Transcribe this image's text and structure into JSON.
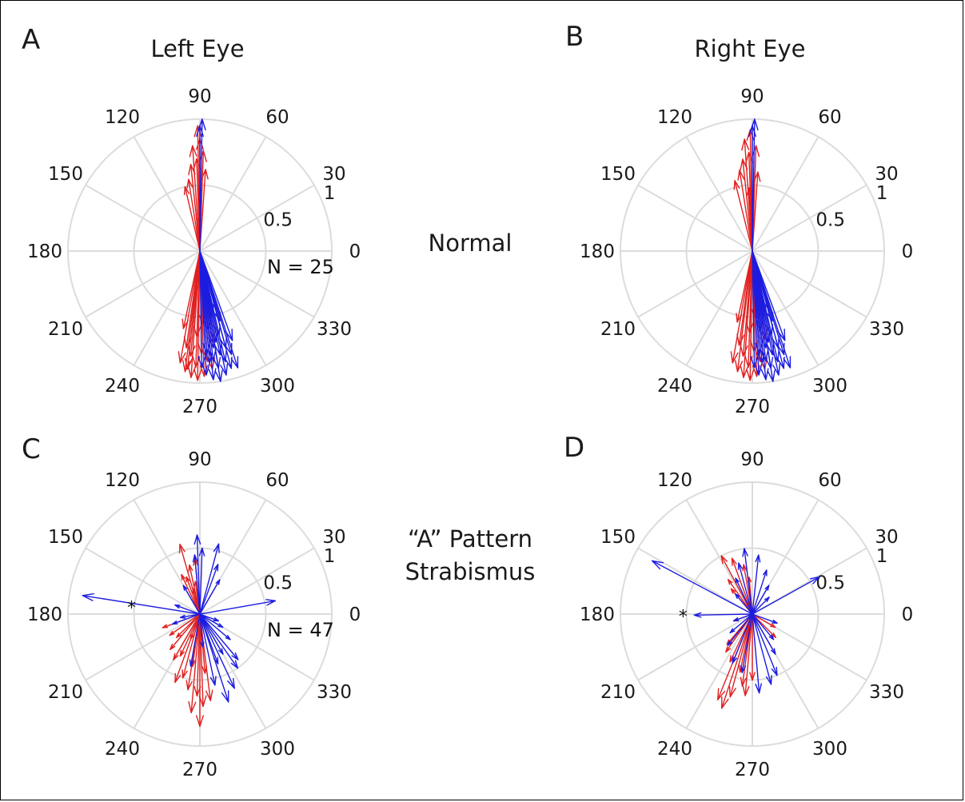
{
  "figure": {
    "column_titles": [
      "Left Eye",
      "Right Eye"
    ],
    "row_labels": [
      [
        "Normal"
      ],
      [
        "“A” Pattern",
        "Strabismus"
      ]
    ]
  },
  "chart_data": [
    {
      "type": "compass",
      "panel": "A",
      "angle_ticks": [
        "0",
        "30",
        "60",
        "90",
        "120",
        "150",
        "180",
        "210",
        "240",
        "270",
        "300",
        "330"
      ],
      "radius_ticks": [
        "0.5",
        "1"
      ],
      "rlim": [
        0,
        1
      ],
      "annotation": "N = 25",
      "series": [
        {
          "color": "#e02020",
          "vectors": [
            [
              0.95,
              91
            ],
            [
              0.8,
              94
            ],
            [
              0.76,
              88
            ],
            [
              0.7,
              92
            ],
            [
              0.66,
              96
            ],
            [
              0.55,
              99
            ],
            [
              0.5,
              103
            ],
            [
              0.85,
              90
            ],
            [
              0.62,
              86
            ],
            [
              0.98,
              269
            ],
            [
              0.96,
              266
            ],
            [
              0.95,
              272
            ],
            [
              0.92,
              263
            ],
            [
              0.9,
              276
            ],
            [
              0.88,
              268
            ],
            [
              0.86,
              260
            ],
            [
              0.84,
              274
            ],
            [
              0.8,
              265
            ],
            [
              0.78,
              271
            ],
            [
              0.74,
              262
            ],
            [
              0.7,
              278
            ],
            [
              0.65,
              268
            ],
            [
              0.6,
              258
            ],
            [
              0.55,
              272
            ],
            [
              0.9,
              264
            ]
          ]
        },
        {
          "color": "#1c1ce0",
          "vectors": [
            [
              1.0,
              89
            ],
            [
              0.95,
              90
            ],
            [
              1.0,
              279
            ],
            [
              0.98,
              276
            ],
            [
              0.96,
              282
            ],
            [
              0.94,
              273
            ],
            [
              0.92,
              285
            ],
            [
              0.9,
              279
            ],
            [
              0.88,
              271
            ],
            [
              0.86,
              283
            ],
            [
              0.84,
              277
            ],
            [
              0.82,
              287
            ],
            [
              0.8,
              281
            ],
            [
              0.78,
              274
            ],
            [
              0.76,
              285
            ],
            [
              0.74,
              278
            ],
            [
              0.72,
              290
            ],
            [
              0.7,
              280
            ],
            [
              0.65,
              283
            ],
            [
              0.6,
              276
            ],
            [
              0.55,
              286
            ],
            [
              0.5,
              280
            ],
            [
              0.45,
              283
            ],
            [
              0.85,
              275
            ],
            [
              0.93,
              288
            ]
          ]
        }
      ]
    },
    {
      "type": "compass",
      "panel": "B",
      "angle_ticks": [
        "0",
        "30",
        "60",
        "90",
        "120",
        "150",
        "180",
        "210",
        "240",
        "270",
        "300",
        "330"
      ],
      "radius_ticks": [
        "0.5",
        "1"
      ],
      "rlim": [
        0,
        1
      ],
      "series": [
        {
          "color": "#e02020",
          "vectors": [
            [
              0.92,
              91
            ],
            [
              0.85,
              94
            ],
            [
              0.8,
              88
            ],
            [
              0.75,
              92
            ],
            [
              0.7,
              96
            ],
            [
              0.62,
              99
            ],
            [
              0.55,
              104
            ],
            [
              0.6,
              86
            ],
            [
              0.48,
              93
            ],
            [
              0.98,
              269
            ],
            [
              0.96,
              266
            ],
            [
              0.95,
              272
            ],
            [
              0.92,
              263
            ],
            [
              0.9,
              276
            ],
            [
              0.88,
              268
            ],
            [
              0.86,
              260
            ],
            [
              0.84,
              274
            ],
            [
              0.8,
              265
            ],
            [
              0.76,
              271
            ],
            [
              0.72,
              262
            ],
            [
              0.68,
              278
            ],
            [
              0.62,
              268
            ],
            [
              0.55,
              258
            ],
            [
              0.5,
              272
            ]
          ]
        },
        {
          "color": "#1c1ce0",
          "vectors": [
            [
              1.0,
              89
            ],
            [
              0.95,
              90
            ],
            [
              1.0,
              279
            ],
            [
              0.98,
              276
            ],
            [
              0.96,
              282
            ],
            [
              0.94,
              273
            ],
            [
              0.92,
              285
            ],
            [
              0.9,
              279
            ],
            [
              0.88,
              271
            ],
            [
              0.86,
              283
            ],
            [
              0.84,
              277
            ],
            [
              0.82,
              287
            ],
            [
              0.8,
              281
            ],
            [
              0.78,
              274
            ],
            [
              0.76,
              285
            ],
            [
              0.74,
              278
            ],
            [
              0.72,
              290
            ],
            [
              0.7,
              280
            ],
            [
              0.65,
              283
            ],
            [
              0.6,
              276
            ],
            [
              0.55,
              286
            ],
            [
              0.5,
              280
            ],
            [
              0.45,
              283
            ],
            [
              0.85,
              275
            ],
            [
              0.93,
              288
            ]
          ]
        }
      ]
    },
    {
      "type": "compass",
      "panel": "C",
      "angle_ticks": [
        "0",
        "30",
        "60",
        "90",
        "120",
        "150",
        "180",
        "210",
        "240",
        "270",
        "300",
        "330"
      ],
      "radius_ticks": [
        "0.5",
        "1"
      ],
      "rlim": [
        0,
        1
      ],
      "annotation": "N = 47",
      "marker": {
        "label": "*",
        "angle": 170,
        "radius": 0.44
      },
      "series": [
        {
          "color": "#e02020",
          "vectors": [
            [
              0.55,
              106
            ],
            [
              0.42,
              95
            ],
            [
              0.38,
              102
            ],
            [
              0.3,
              110
            ],
            [
              0.25,
              98
            ],
            [
              0.33,
              115
            ],
            [
              0.2,
              105
            ],
            [
              0.3,
              200
            ],
            [
              0.28,
              215
            ],
            [
              0.35,
              230
            ],
            [
              0.4,
              240
            ],
            [
              0.25,
              225
            ],
            [
              0.2,
              250
            ],
            [
              0.62,
              268
            ],
            [
              0.7,
              272
            ],
            [
              0.85,
              270
            ],
            [
              0.75,
              265
            ],
            [
              0.66,
              277
            ],
            [
              0.58,
              261
            ],
            [
              0.5,
              255
            ],
            [
              0.45,
              275
            ],
            [
              0.4,
              262
            ],
            [
              0.55,
              250
            ],
            [
              0.35,
              245
            ]
          ]
        },
        {
          "color": "#1c1ce0",
          "vectors": [
            [
              0.9,
              171
            ],
            [
              0.58,
              10
            ],
            [
              0.55,
              75
            ],
            [
              0.5,
              88
            ],
            [
              0.45,
              95
            ],
            [
              0.4,
              70
            ],
            [
              0.6,
              92
            ],
            [
              0.3,
              60
            ],
            [
              0.25,
              120
            ],
            [
              0.2,
              160
            ],
            [
              0.15,
              190
            ],
            [
              0.22,
              200
            ],
            [
              0.35,
              300
            ],
            [
              0.45,
              310
            ],
            [
              0.4,
              290
            ],
            [
              0.55,
              282
            ],
            [
              0.62,
              295
            ],
            [
              0.7,
              288
            ],
            [
              0.5,
              305
            ],
            [
              0.3,
              320
            ],
            [
              0.25,
              275
            ],
            [
              0.2,
              330
            ],
            [
              0.15,
              340
            ],
            [
              0.4,
              260
            ]
          ]
        }
      ]
    },
    {
      "type": "compass",
      "panel": "D",
      "angle_ticks": [
        "0",
        "30",
        "60",
        "90",
        "120",
        "150",
        "180",
        "210",
        "240",
        "270",
        "300",
        "330"
      ],
      "radius_ticks": [
        "0.5",
        "1"
      ],
      "rlim": [
        0,
        1
      ],
      "marker": {
        "label": "*",
        "angle": 179,
        "radius": 0.44
      },
      "series": [
        {
          "color": "#e02020",
          "vectors": [
            [
              0.5,
              118
            ],
            [
              0.45,
              110
            ],
            [
              0.38,
              100
            ],
            [
              0.32,
              125
            ],
            [
              0.28,
              95
            ],
            [
              0.25,
              130
            ],
            [
              0.45,
              258
            ],
            [
              0.55,
              262
            ],
            [
              0.65,
              255
            ],
            [
              0.75,
              252
            ],
            [
              0.62,
              265
            ],
            [
              0.7,
              248
            ],
            [
              0.4,
              245
            ],
            [
              0.5,
              270
            ],
            [
              0.35,
              235
            ],
            [
              0.3,
              230
            ],
            [
              0.2,
              330
            ],
            [
              0.25,
              315
            ],
            [
              0.15,
              200
            ]
          ]
        },
        {
          "color": "#1c1ce0",
          "vectors": [
            [
              0.86,
              152
            ],
            [
              0.58,
              29
            ],
            [
              0.44,
              181
            ],
            [
              0.5,
              97
            ],
            [
              0.45,
              84
            ],
            [
              0.4,
              105
            ],
            [
              0.35,
              72
            ],
            [
              0.3,
              115
            ],
            [
              0.25,
              60
            ],
            [
              0.2,
              130
            ],
            [
              0.18,
              45
            ],
            [
              0.6,
              275
            ],
            [
              0.55,
              285
            ],
            [
              0.45,
              260
            ],
            [
              0.4,
              248
            ],
            [
              0.35,
              300
            ],
            [
              0.3,
              232
            ],
            [
              0.25,
              310
            ],
            [
              0.22,
              220
            ],
            [
              0.2,
              340
            ],
            [
              0.15,
              200
            ],
            [
              0.5,
              292
            ]
          ]
        }
      ]
    }
  ]
}
